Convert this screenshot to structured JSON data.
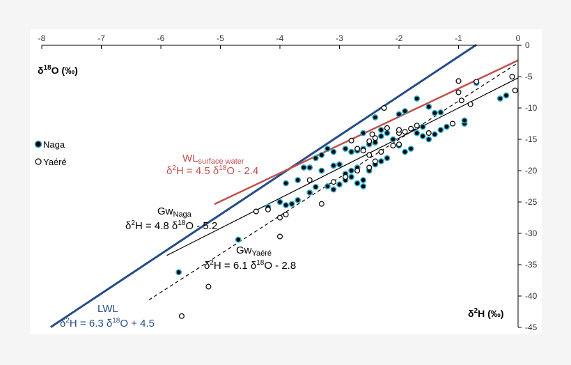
{
  "chart_data": {
    "type": "scatter",
    "title": "",
    "xlabel": "δ18O (‰)",
    "ylabel": "δ2H (‰)",
    "xlim": [
      -8,
      0
    ],
    "ylim": [
      -45,
      0
    ],
    "x_ticks": [
      -8,
      -7,
      -6,
      -5,
      -4,
      -3,
      -2,
      -1,
      0
    ],
    "y_ticks": [
      0,
      -5,
      -10,
      -15,
      -20,
      -25,
      -30,
      -35,
      -40,
      -45
    ],
    "grid": false,
    "legend_position": "left",
    "series": [
      {
        "name": "Naga",
        "marker": "filled-circle",
        "color": "#000000",
        "halo": "#2fa8c8",
        "points": [
          [
            -4.7,
            -31.0
          ],
          [
            -5.7,
            -36.2
          ],
          [
            -4.2,
            -25.8
          ],
          [
            -4.0,
            -25.0
          ],
          [
            -3.9,
            -25.5
          ],
          [
            -3.8,
            -25.3
          ],
          [
            -3.7,
            -24.7
          ],
          [
            -3.9,
            -22.0
          ],
          [
            -3.7,
            -21.5
          ],
          [
            -3.5,
            -23.5
          ],
          [
            -3.4,
            -22.6
          ],
          [
            -3.6,
            -19.5
          ],
          [
            -3.3,
            -20.0
          ],
          [
            -3.2,
            -22.5
          ],
          [
            -3.1,
            -23.0
          ],
          [
            -3.0,
            -22.2
          ],
          [
            -2.9,
            -21.5
          ],
          [
            -2.8,
            -20.0
          ],
          [
            -2.7,
            -19.5
          ],
          [
            -2.6,
            -21.5
          ],
          [
            -2.5,
            -20.0
          ],
          [
            -2.4,
            -19.0
          ],
          [
            -2.3,
            -18.5
          ],
          [
            -2.2,
            -18.0
          ],
          [
            -3.0,
            -19.0
          ],
          [
            -3.1,
            -17.0
          ],
          [
            -3.2,
            -16.5
          ],
          [
            -3.3,
            -17.5
          ],
          [
            -3.4,
            -18.0
          ],
          [
            -3.5,
            -19.5
          ],
          [
            -2.9,
            -16.5
          ],
          [
            -2.8,
            -17.0
          ],
          [
            -2.7,
            -16.8
          ],
          [
            -2.6,
            -16.5
          ],
          [
            -2.5,
            -15.8
          ],
          [
            -2.4,
            -15.5
          ],
          [
            -2.3,
            -14.5
          ],
          [
            -2.2,
            -14.0
          ],
          [
            -2.1,
            -15.0
          ],
          [
            -2.0,
            -16.0
          ],
          [
            -1.9,
            -17.0
          ],
          [
            -1.8,
            -16.5
          ],
          [
            -2.6,
            -14.0
          ],
          [
            -2.3,
            -13.5
          ],
          [
            -2.4,
            -11.5
          ],
          [
            -2.0,
            -11.0
          ],
          [
            -1.9,
            -10.5
          ],
          [
            -1.7,
            -8.5
          ],
          [
            -1.5,
            -9.8
          ],
          [
            -1.4,
            -10.8
          ],
          [
            -1.3,
            -10.7
          ],
          [
            -1.6,
            -14.5
          ],
          [
            -1.5,
            -15.0
          ],
          [
            -1.4,
            -14.2
          ],
          [
            -1.3,
            -13.5
          ],
          [
            -1.2,
            -13.0
          ],
          [
            -0.9,
            -12.5
          ],
          [
            -0.9,
            -12.0
          ],
          [
            -1.6,
            -13.0
          ],
          [
            -1.7,
            -14.0
          ],
          [
            -3.1,
            -19.2
          ],
          [
            -2.9,
            -20.5
          ],
          [
            -2.8,
            -21.0
          ],
          [
            -2.7,
            -22.0
          ],
          [
            -2.6,
            -22.5
          ],
          [
            -0.7,
            -6.0
          ],
          [
            -0.3,
            -8.5
          ],
          [
            -0.2,
            -8.0
          ]
        ]
      },
      {
        "name": "Yaéré",
        "marker": "open-circle",
        "color": "#000000",
        "points": [
          [
            -5.65,
            -43.2
          ],
          [
            -5.2,
            -38.5
          ],
          [
            -4.4,
            -26.5
          ],
          [
            -4.2,
            -26.2
          ],
          [
            -4.0,
            -27.5
          ],
          [
            -4.0,
            -30.5
          ],
          [
            -3.9,
            -27.0
          ],
          [
            -3.5,
            -21.5
          ],
          [
            -3.3,
            -25.3
          ],
          [
            -3.1,
            -21.8
          ],
          [
            -2.9,
            -21.0
          ],
          [
            -2.7,
            -20.0
          ],
          [
            -2.5,
            -19.5
          ],
          [
            -2.4,
            -18.5
          ],
          [
            -2.3,
            -17.0
          ],
          [
            -2.1,
            -16.0
          ],
          [
            -2.0,
            -15.8
          ],
          [
            -2.5,
            -17.5
          ],
          [
            -2.6,
            -16.8
          ],
          [
            -2.7,
            -16.5
          ],
          [
            -2.8,
            -15.2
          ],
          [
            -2.5,
            -15.3
          ],
          [
            -2.4,
            -14.8
          ],
          [
            -2.0,
            -14.0
          ],
          [
            -1.9,
            -13.8
          ],
          [
            -1.8,
            -13.3
          ],
          [
            -1.7,
            -12.8
          ],
          [
            -1.5,
            -14.0
          ],
          [
            -1.1,
            -12.5
          ],
          [
            -0.8,
            -9.4
          ],
          [
            -0.7,
            -5.8
          ],
          [
            -1.0,
            -7.5
          ],
          [
            -1.0,
            -5.7
          ],
          [
            -0.95,
            -8.8
          ],
          [
            -2.0,
            -13.5
          ],
          [
            -2.25,
            -10.0
          ],
          [
            -0.1,
            -5.0
          ],
          [
            -0.05,
            -7.2
          ],
          [
            -2.2,
            -13.2
          ],
          [
            -2.45,
            -14.2
          ]
        ]
      }
    ],
    "lines": [
      {
        "name": "LWL",
        "label": "LWL",
        "equation": "δ2H = 6.3 δ18O + 4.5",
        "slope": 6.3,
        "intercept": 4.5,
        "x_range": [
          -7.85,
          -0.7
        ],
        "color": "#244d86",
        "style": "solid"
      },
      {
        "name": "WL surface water",
        "label_main": "WL",
        "label_sub": "surface water",
        "equation": "δ2H = 4.5 δ18O - 2.4",
        "slope": 4.5,
        "intercept": -2.4,
        "x_range": [
          -5.1,
          0
        ],
        "color": "#c0504d",
        "style": "solid"
      },
      {
        "name": "Gw Naga",
        "label_main": "Gw",
        "label_sub": "Naga",
        "equation": "δ2H = 4.8 δ18O - 5.2",
        "slope": 4.8,
        "intercept": -5.2,
        "x_range": [
          -5.9,
          0
        ],
        "color": "#000000",
        "style": "solid"
      },
      {
        "name": "Gw Yaéré",
        "label_main": "Gw",
        "label_sub": "Yaéré",
        "equation": "δ2H = 6.1 δ18O - 2.8",
        "slope": 6.1,
        "intercept": -2.8,
        "x_range": [
          -6.2,
          0
        ],
        "color": "#000000",
        "style": "dashed"
      }
    ]
  }
}
